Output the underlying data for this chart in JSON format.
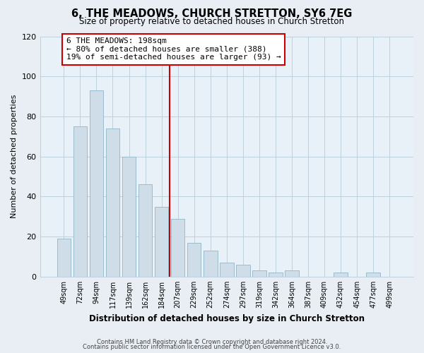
{
  "title": "6, THE MEADOWS, CHURCH STRETTON, SY6 7EG",
  "subtitle": "Size of property relative to detached houses in Church Stretton",
  "xlabel": "Distribution of detached houses by size in Church Stretton",
  "ylabel": "Number of detached properties",
  "bar_labels": [
    "49sqm",
    "72sqm",
    "94sqm",
    "117sqm",
    "139sqm",
    "162sqm",
    "184sqm",
    "207sqm",
    "229sqm",
    "252sqm",
    "274sqm",
    "297sqm",
    "319sqm",
    "342sqm",
    "364sqm",
    "387sqm",
    "409sqm",
    "432sqm",
    "454sqm",
    "477sqm",
    "499sqm"
  ],
  "bar_values": [
    19,
    75,
    93,
    74,
    60,
    46,
    35,
    29,
    17,
    13,
    7,
    6,
    3,
    2,
    3,
    0,
    0,
    2,
    0,
    2,
    0
  ],
  "bar_color": "#cfdde8",
  "bar_edge_color": "#9bbccc",
  "vline_x_index": 7,
  "vline_color": "#cc0000",
  "annotation_line1": "6 THE MEADOWS: 198sqm",
  "annotation_line2": "← 80% of detached houses are smaller (388)",
  "annotation_line3": "19% of semi-detached houses are larger (93) →",
  "annotation_box_color": "#ffffff",
  "annotation_box_edge": "#cc0000",
  "ylim": [
    0,
    120
  ],
  "yticks": [
    0,
    20,
    40,
    60,
    80,
    100,
    120
  ],
  "footer_line1": "Contains HM Land Registry data © Crown copyright and database right 2024.",
  "footer_line2": "Contains public sector information licensed under the Open Government Licence v3.0.",
  "bg_color": "#e8eef4",
  "plot_bg_color": "#e8f0f8",
  "grid_color": "#b8ccd8"
}
